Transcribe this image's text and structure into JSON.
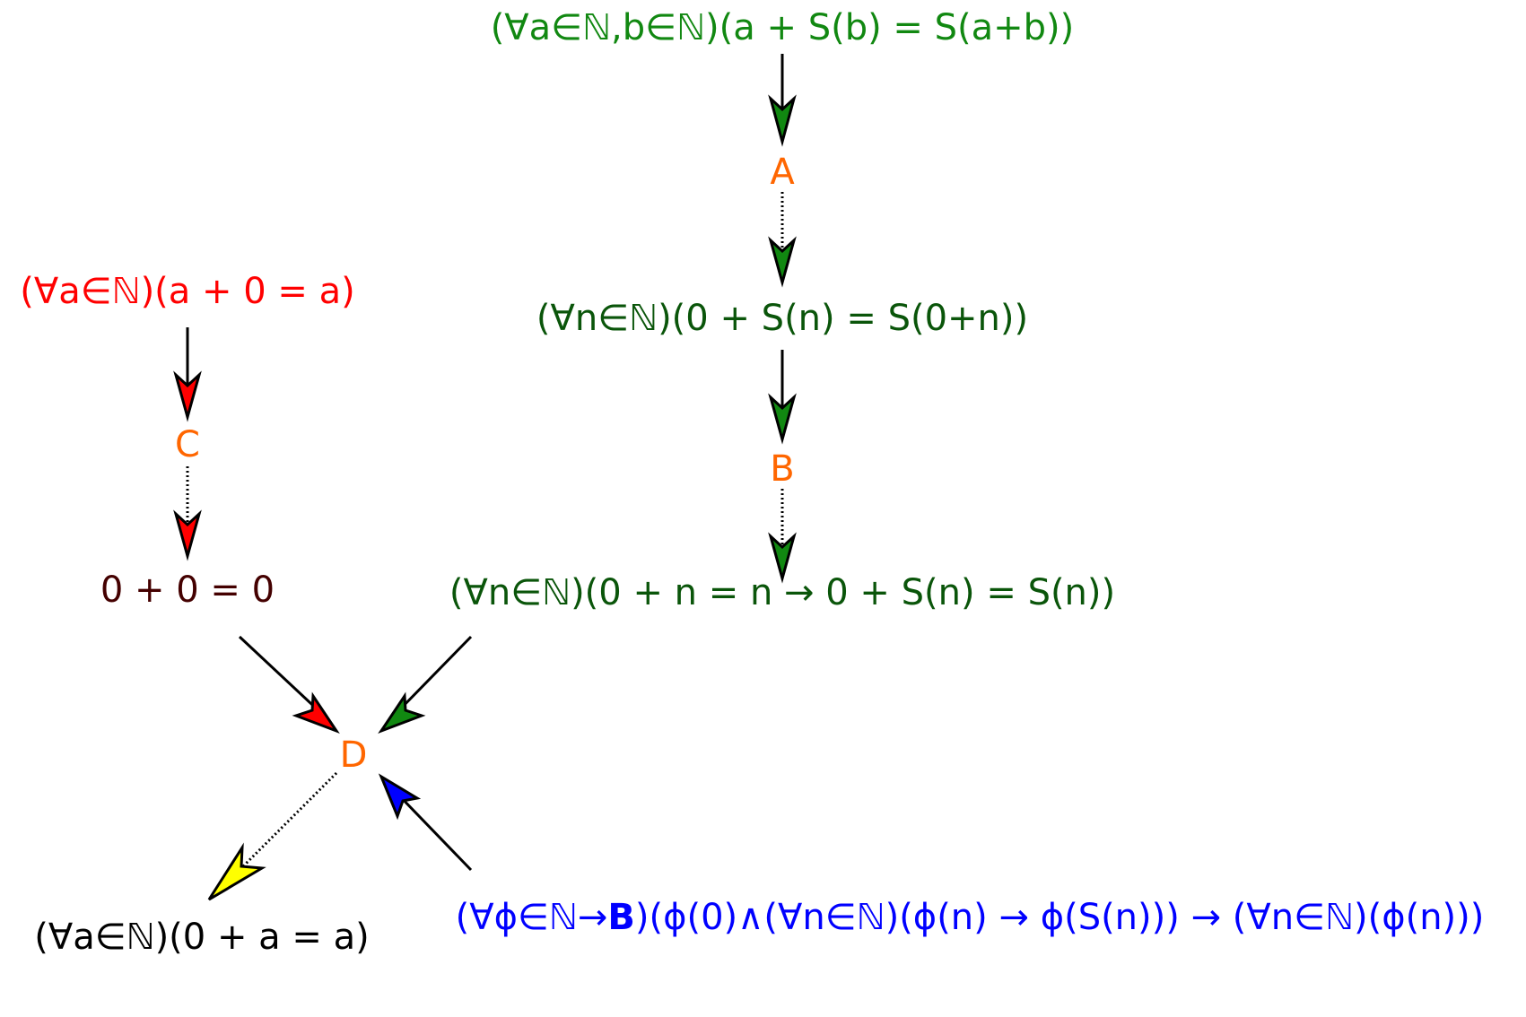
{
  "colors": {
    "green": "#118811",
    "darkgreen": "#0a550a",
    "red": "#ff0000",
    "darkred": "#440000",
    "orange": "#ff6600",
    "blue": "#0000ff",
    "yellow": "#ffff00",
    "black": "#000000"
  },
  "nodes": {
    "axiom_add_succ": "(∀a∈ℕ,b∈ℕ)(a + S(b) = S(a+b))",
    "step_a": "A",
    "zero_add_succ": "(∀n∈ℕ)(0 + S(n) = S(0+n))",
    "step_b": "B",
    "induction_step": "(∀n∈ℕ)(0 + n = n → 0 + S(n) = S(n))",
    "axiom_add_zero": "(∀a∈ℕ)(a + 0 = a)",
    "step_c": "C",
    "base_case": "0 + 0 = 0",
    "step_d": "D",
    "conclusion": "(∀a∈ℕ)(0 + a = a)",
    "induction_axiom": {
      "part1": "(∀ϕ∈ℕ→",
      "bold": "B",
      "part2": ")(ϕ(0)∧(∀n∈ℕ)(ϕ(n) → ϕ(S(n))) → (∀n∈ℕ)(ϕ(n)))"
    }
  },
  "edges": [
    {
      "from": "axiom_add_succ",
      "to": "step_a",
      "style": "solid",
      "head": "green"
    },
    {
      "from": "step_a",
      "to": "zero_add_succ",
      "style": "dotted",
      "head": "green"
    },
    {
      "from": "zero_add_succ",
      "to": "step_b",
      "style": "solid",
      "head": "green"
    },
    {
      "from": "step_b",
      "to": "induction_step",
      "style": "dotted",
      "head": "green"
    },
    {
      "from": "axiom_add_zero",
      "to": "step_c",
      "style": "solid",
      "head": "red"
    },
    {
      "from": "step_c",
      "to": "base_case",
      "style": "dotted",
      "head": "red"
    },
    {
      "from": "base_case",
      "to": "step_d",
      "style": "solid",
      "head": "red"
    },
    {
      "from": "induction_step",
      "to": "step_d",
      "style": "solid",
      "head": "green"
    },
    {
      "from": "induction_axiom",
      "to": "step_d",
      "style": "solid",
      "head": "blue"
    },
    {
      "from": "step_d",
      "to": "conclusion",
      "style": "dotted",
      "head": "yellow"
    }
  ]
}
